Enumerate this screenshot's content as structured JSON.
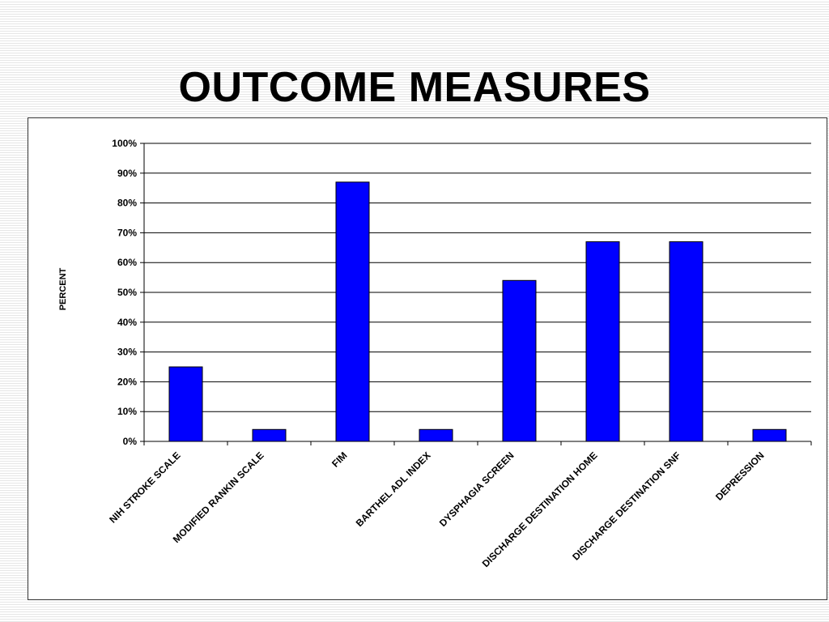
{
  "title": "OUTCOME MEASURES",
  "chart_data": {
    "type": "bar",
    "title": "OUTCOME MEASURES",
    "xlabel": "",
    "ylabel": "PERCENT",
    "categories": [
      "NIH STROKE SCALE",
      "MODIFIED RANKIN SCALE",
      "FIM",
      "BARTHEL ADL INDEX",
      "DYSPHAGIA SCREEN",
      "DISCHARGE DESTINATION HOME",
      "DISCHARGE DESTINATION SNF",
      "DEPRESSION"
    ],
    "values": [
      25,
      4,
      87,
      4,
      54,
      67,
      67,
      4
    ],
    "ylim": [
      0,
      100
    ],
    "yticks": [
      "0%",
      "10%",
      "20%",
      "30%",
      "40%",
      "50%",
      "60%",
      "70%",
      "80%",
      "90%",
      "100%"
    ],
    "grid": true,
    "legend": "none",
    "bar_color": "#0000ff"
  }
}
